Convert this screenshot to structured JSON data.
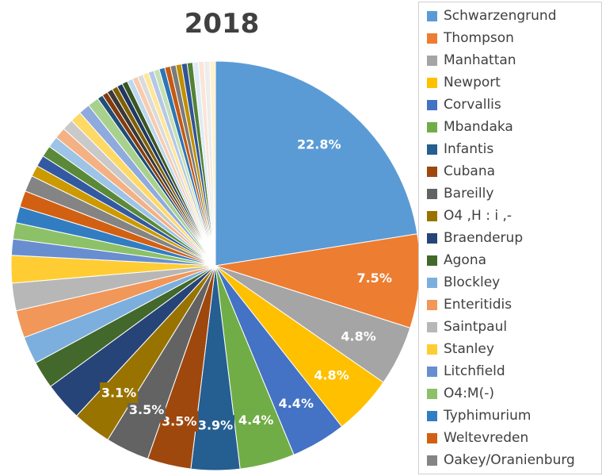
{
  "chart_data": {
    "type": "pie",
    "title": "2018",
    "legend_position": "right",
    "slices": [
      {
        "label": "Schwarzengrund",
        "value": 22.8,
        "color": "#5B9BD5",
        "data_label": "22.8%"
      },
      {
        "label": "Thompson",
        "value": 7.5,
        "color": "#ED7D31",
        "data_label": "7.5%"
      },
      {
        "label": "Manhattan",
        "value": 4.8,
        "color": "#A5A5A5",
        "data_label": "4.8%"
      },
      {
        "label": "Newport",
        "value": 4.8,
        "color": "#FFC000",
        "data_label": "4.8%"
      },
      {
        "label": "Corvallis",
        "value": 4.4,
        "color": "#4472C4",
        "data_label": "4.4%"
      },
      {
        "label": "Mbandaka",
        "value": 4.4,
        "color": "#70AD47",
        "data_label": "4.4%"
      },
      {
        "label": "Infantis",
        "value": 3.9,
        "color": "#255E91",
        "data_label": "3.9%"
      },
      {
        "label": "Cubana",
        "value": 3.5,
        "color": "#9E480E",
        "data_label": "3.5%"
      },
      {
        "label": "Bareilly",
        "value": 3.5,
        "color": "#636363",
        "data_label": "3.5%"
      },
      {
        "label": "O4 ,H : i ,-",
        "value": 3.1,
        "color": "#997300",
        "data_label": "3.1%"
      },
      {
        "label": "Braenderup",
        "value": 3.1,
        "color": "#264478",
        "data_label": ""
      },
      {
        "label": "Agona",
        "value": 2.2,
        "color": "#43682B",
        "data_label": ""
      },
      {
        "label": "Blockley",
        "value": 2.2,
        "color": "#7CAFDD",
        "data_label": ""
      },
      {
        "label": "Enteritidis",
        "value": 2.2,
        "color": "#F1975A",
        "data_label": ""
      },
      {
        "label": "Saintpaul",
        "value": 2.2,
        "color": "#B7B7B7",
        "data_label": ""
      },
      {
        "label": "Stanley",
        "value": 2.2,
        "color": "#FFCD33",
        "data_label": ""
      },
      {
        "label": "Litchfield",
        "value": 1.3,
        "color": "#698ED0",
        "data_label": ""
      },
      {
        "label": "O4:M(-)",
        "value": 1.3,
        "color": "#8CC168",
        "data_label": ""
      },
      {
        "label": "Typhimurium",
        "value": 1.3,
        "color": "#327DC2",
        "data_label": ""
      },
      {
        "label": "Weltevreden",
        "value": 1.3,
        "color": "#D26012",
        "data_label": ""
      },
      {
        "label": "Oakey/Oranienburg",
        "value": 1.3,
        "color": "#848484",
        "data_label": ""
      },
      {
        "label": "",
        "value": 0.9,
        "color": "#CC9A00"
      },
      {
        "label": "",
        "value": 0.9,
        "color": "#335AA1"
      },
      {
        "label": "",
        "value": 0.9,
        "color": "#5A8A39"
      },
      {
        "label": "",
        "value": 0.9,
        "color": "#9DC3E6"
      },
      {
        "label": "",
        "value": 0.9,
        "color": "#F4B183"
      },
      {
        "label": "",
        "value": 0.9,
        "color": "#C9C9C9"
      },
      {
        "label": "",
        "value": 0.9,
        "color": "#FFD966"
      },
      {
        "label": "",
        "value": 0.9,
        "color": "#8FAADC"
      },
      {
        "label": "",
        "value": 0.9,
        "color": "#A9D18E"
      },
      {
        "label": "",
        "value": 0.45,
        "color": "#1F4E79"
      },
      {
        "label": "",
        "value": 0.45,
        "color": "#843C0C"
      },
      {
        "label": "",
        "value": 0.45,
        "color": "#3B3838"
      },
      {
        "label": "",
        "value": 0.45,
        "color": "#7F6000"
      },
      {
        "label": "",
        "value": 0.45,
        "color": "#203864"
      },
      {
        "label": "",
        "value": 0.45,
        "color": "#385723"
      },
      {
        "label": "",
        "value": 0.45,
        "color": "#BDD7EE"
      },
      {
        "label": "",
        "value": 0.45,
        "color": "#F8CBAD"
      },
      {
        "label": "",
        "value": 0.45,
        "color": "#DBDBDB"
      },
      {
        "label": "",
        "value": 0.45,
        "color": "#FFE699"
      },
      {
        "label": "",
        "value": 0.45,
        "color": "#B4C7E7"
      },
      {
        "label": "",
        "value": 0.45,
        "color": "#C5E0B4"
      },
      {
        "label": "",
        "value": 0.45,
        "color": "#2E75B6"
      },
      {
        "label": "",
        "value": 0.45,
        "color": "#C55A11"
      },
      {
        "label": "",
        "value": 0.45,
        "color": "#7B7B7B"
      },
      {
        "label": "",
        "value": 0.45,
        "color": "#BF9000"
      },
      {
        "label": "",
        "value": 0.45,
        "color": "#2F5597"
      },
      {
        "label": "",
        "value": 0.45,
        "color": "#548235"
      },
      {
        "label": "",
        "value": 0.45,
        "color": "#DEEBF7"
      },
      {
        "label": "",
        "value": 0.45,
        "color": "#FBE5D6"
      },
      {
        "label": "",
        "value": 0.45,
        "color": "#EDEDED"
      },
      {
        "label": "",
        "value": 0.45,
        "color": "#FFF2CC"
      }
    ]
  }
}
